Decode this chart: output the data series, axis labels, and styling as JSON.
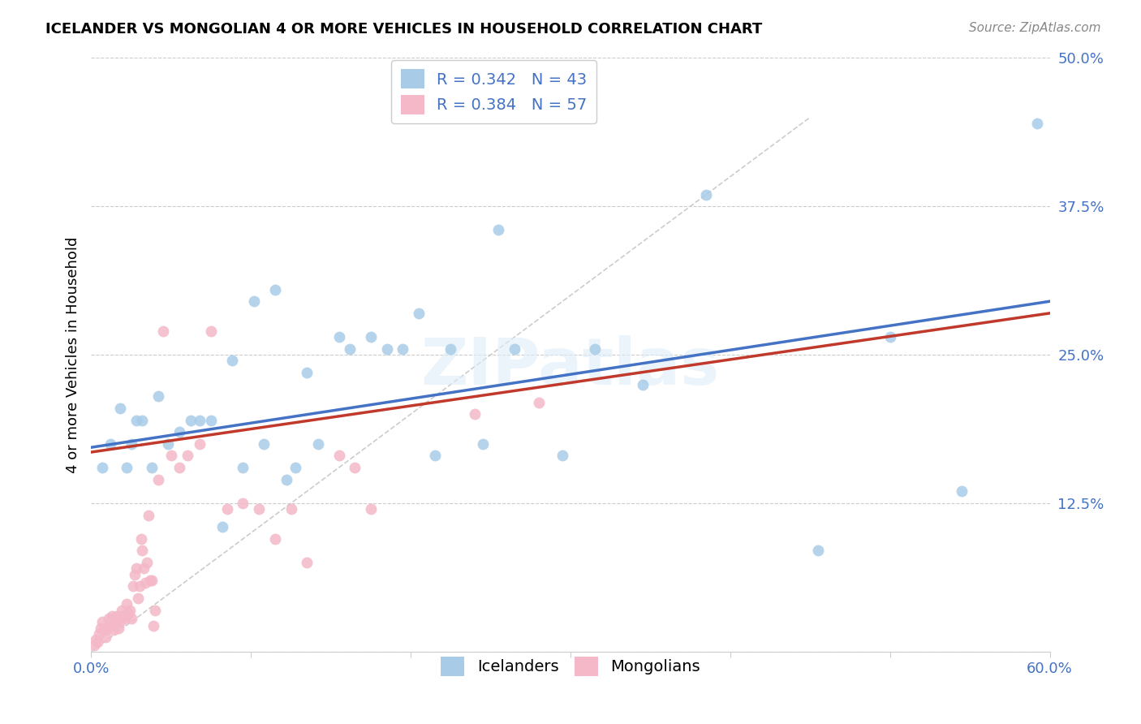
{
  "title": "ICELANDER VS MONGOLIAN 4 OR MORE VEHICLES IN HOUSEHOLD CORRELATION CHART",
  "source": "Source: ZipAtlas.com",
  "ylabel": "4 or more Vehicles in Household",
  "watermark": "ZIPatlas",
  "xlim": [
    0.0,
    0.6
  ],
  "ylim": [
    0.0,
    0.5
  ],
  "xticks": [
    0.0,
    0.1,
    0.2,
    0.3,
    0.4,
    0.5,
    0.6
  ],
  "yticks": [
    0.0,
    0.125,
    0.25,
    0.375,
    0.5
  ],
  "xticklabels": [
    "0.0%",
    "",
    "",
    "",
    "",
    "",
    "60.0%"
  ],
  "yticklabels": [
    "",
    "12.5%",
    "25.0%",
    "37.5%",
    "50.0%"
  ],
  "blue_R": 0.342,
  "blue_N": 43,
  "pink_R": 0.384,
  "pink_N": 57,
  "blue_color": "#a8cce8",
  "pink_color": "#f4b8c8",
  "blue_line_color": "#4472c4",
  "pink_line_color": "#c0392b",
  "diagonal_color": "#cccccc",
  "blue_line_x0": 0.0,
  "blue_line_y0": 0.172,
  "blue_line_x1": 0.6,
  "blue_line_y1": 0.295,
  "pink_line_x0": 0.0,
  "pink_line_y0": 0.168,
  "pink_line_x1": 0.6,
  "pink_line_y1": 0.285,
  "icelanders_x": [
    0.007,
    0.012,
    0.018,
    0.022,
    0.025,
    0.028,
    0.032,
    0.038,
    0.042,
    0.048,
    0.055,
    0.062,
    0.068,
    0.075,
    0.082,
    0.088,
    0.095,
    0.102,
    0.108,
    0.115,
    0.122,
    0.128,
    0.135,
    0.142,
    0.155,
    0.162,
    0.175,
    0.185,
    0.195,
    0.205,
    0.215,
    0.225,
    0.245,
    0.255,
    0.265,
    0.295,
    0.315,
    0.345,
    0.385,
    0.455,
    0.5,
    0.545,
    0.592
  ],
  "icelanders_y": [
    0.155,
    0.175,
    0.205,
    0.155,
    0.175,
    0.195,
    0.195,
    0.155,
    0.215,
    0.175,
    0.185,
    0.195,
    0.195,
    0.195,
    0.105,
    0.245,
    0.155,
    0.295,
    0.175,
    0.305,
    0.145,
    0.155,
    0.235,
    0.175,
    0.265,
    0.255,
    0.265,
    0.255,
    0.255,
    0.285,
    0.165,
    0.255,
    0.175,
    0.355,
    0.255,
    0.165,
    0.255,
    0.225,
    0.385,
    0.085,
    0.265,
    0.135,
    0.445
  ],
  "mongolians_x": [
    0.002,
    0.003,
    0.004,
    0.005,
    0.006,
    0.007,
    0.008,
    0.009,
    0.01,
    0.011,
    0.012,
    0.013,
    0.014,
    0.015,
    0.016,
    0.017,
    0.018,
    0.019,
    0.02,
    0.021,
    0.022,
    0.023,
    0.024,
    0.025,
    0.026,
    0.027,
    0.028,
    0.029,
    0.03,
    0.031,
    0.032,
    0.033,
    0.034,
    0.035,
    0.036,
    0.037,
    0.038,
    0.039,
    0.04,
    0.042,
    0.045,
    0.05,
    0.055,
    0.06,
    0.068,
    0.075,
    0.085,
    0.095,
    0.105,
    0.115,
    0.125,
    0.135,
    0.155,
    0.165,
    0.175,
    0.24,
    0.28
  ],
  "mongolians_y": [
    0.005,
    0.01,
    0.008,
    0.015,
    0.02,
    0.025,
    0.018,
    0.012,
    0.02,
    0.028,
    0.022,
    0.03,
    0.018,
    0.025,
    0.03,
    0.02,
    0.025,
    0.035,
    0.03,
    0.028,
    0.04,
    0.032,
    0.035,
    0.028,
    0.055,
    0.065,
    0.07,
    0.045,
    0.055,
    0.095,
    0.085,
    0.07,
    0.058,
    0.075,
    0.115,
    0.06,
    0.06,
    0.022,
    0.035,
    0.145,
    0.27,
    0.165,
    0.155,
    0.165,
    0.175,
    0.27,
    0.12,
    0.125,
    0.12,
    0.095,
    0.12,
    0.075,
    0.165,
    0.155,
    0.12,
    0.2,
    0.21
  ]
}
